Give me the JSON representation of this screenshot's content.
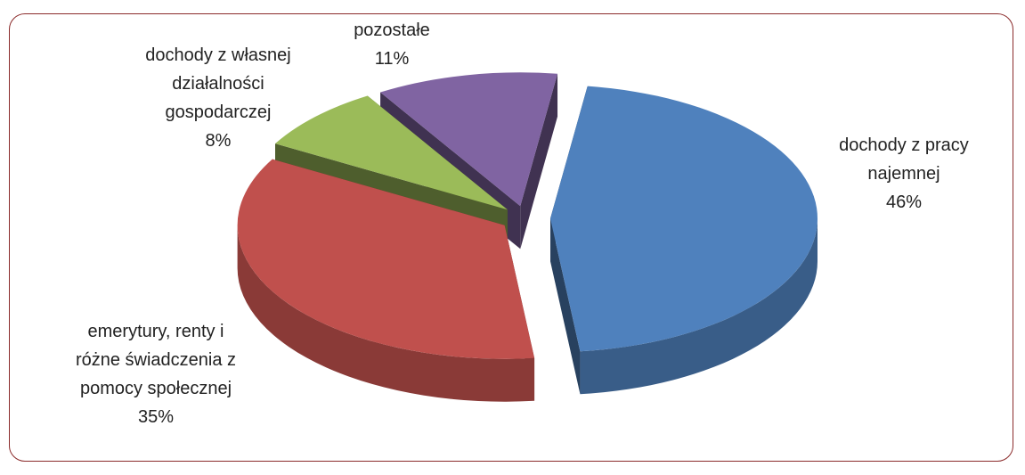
{
  "chart_data": {
    "type": "pie",
    "categories": [
      "dochody z pracy najemnej",
      "emerytury, renty i różne świadczenia z pomocy społecznej",
      "dochody z własnej działalności gospodarczej",
      "pozostałe"
    ],
    "values": [
      46,
      35,
      8,
      11
    ],
    "value_labels": [
      "46%",
      "35%",
      "8%",
      "11%"
    ],
    "colors": [
      "#4f81bd",
      "#c0504d",
      "#9bbb59",
      "#8064a2"
    ]
  }
}
